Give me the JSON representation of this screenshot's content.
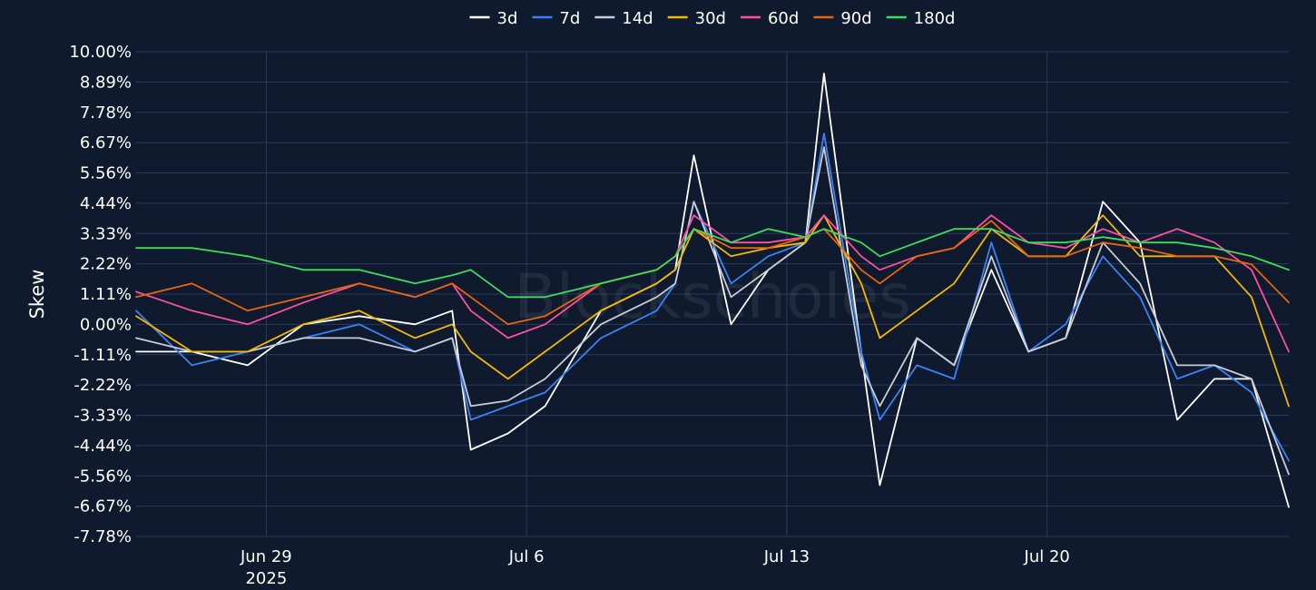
{
  "chart_data": {
    "type": "line",
    "ylabel": "Skew",
    "watermark": "Blockscholes",
    "ylim": [
      -7.78,
      10.0
    ],
    "y_ticks": [
      "10.00%",
      "8.89%",
      "7.78%",
      "6.67%",
      "5.56%",
      "4.44%",
      "3.33%",
      "2.22%",
      "1.11%",
      "0.00%",
      "-1.11%",
      "-2.22%",
      "-3.33%",
      "-4.44%",
      "-5.56%",
      "-6.67%",
      "-7.78%"
    ],
    "x_ticks": [
      {
        "label": "Jun 29",
        "sublabel": "2025",
        "date": "2025-06-29"
      },
      {
        "label": "Jul 6",
        "sublabel": "",
        "date": "2025-07-06"
      },
      {
        "label": "Jul 13",
        "sublabel": "",
        "date": "2025-07-13"
      },
      {
        "label": "Jul 20",
        "sublabel": "",
        "date": "2025-07-20"
      }
    ],
    "x_range": [
      "2025-06-25T12:00",
      "2025-07-26T12:00"
    ],
    "grid": true,
    "legend_placement": "top-center",
    "series": [
      {
        "name": "3d",
        "color": "#ffffff",
        "x": [
          "2025-06-25T12:00",
          "2025-06-27T00:00",
          "2025-06-28T12:00",
          "2025-06-30T00:00",
          "2025-07-01T12:00",
          "2025-07-03T00:00",
          "2025-07-04T00:00",
          "2025-07-04T12:00",
          "2025-07-05T12:00",
          "2025-07-06T12:00",
          "2025-07-08T00:00",
          "2025-07-09T12:00",
          "2025-07-10T00:00",
          "2025-07-10T12:00",
          "2025-07-11T12:00",
          "2025-07-12T12:00",
          "2025-07-13T12:00",
          "2025-07-14T00:00",
          "2025-07-15T00:00",
          "2025-07-15T12:00",
          "2025-07-16T12:00",
          "2025-07-17T12:00",
          "2025-07-18T12:00",
          "2025-07-19T12:00",
          "2025-07-20T12:00",
          "2025-07-21T12:00",
          "2025-07-22T12:00",
          "2025-07-23T12:00",
          "2025-07-24T12:00",
          "2025-07-25T12:00",
          "2025-07-26T12:00"
        ],
        "y": [
          -1.0,
          -1.0,
          -1.5,
          0.0,
          0.3,
          0.0,
          0.5,
          -4.6,
          -4.0,
          -3.0,
          0.5,
          1.5,
          2.0,
          6.2,
          0.0,
          2.0,
          3.0,
          9.2,
          -1.0,
          -5.9,
          -0.5,
          -1.5,
          2.0,
          -1.0,
          -0.5,
          4.5,
          3.0,
          -3.5,
          -2.0,
          -2.0,
          -6.7
        ]
      },
      {
        "name": "7d",
        "color": "#3b82f6",
        "x": [
          "2025-06-25T12:00",
          "2025-06-27T00:00",
          "2025-06-28T12:00",
          "2025-06-30T00:00",
          "2025-07-01T12:00",
          "2025-07-03T00:00",
          "2025-07-04T00:00",
          "2025-07-04T12:00",
          "2025-07-05T12:00",
          "2025-07-06T12:00",
          "2025-07-08T00:00",
          "2025-07-09T12:00",
          "2025-07-10T00:00",
          "2025-07-10T12:00",
          "2025-07-11T12:00",
          "2025-07-12T12:00",
          "2025-07-13T12:00",
          "2025-07-14T00:00",
          "2025-07-15T00:00",
          "2025-07-15T12:00",
          "2025-07-16T12:00",
          "2025-07-17T12:00",
          "2025-07-18T12:00",
          "2025-07-19T12:00",
          "2025-07-20T12:00",
          "2025-07-21T12:00",
          "2025-07-22T12:00",
          "2025-07-23T12:00",
          "2025-07-24T12:00",
          "2025-07-25T12:00",
          "2025-07-26T12:00"
        ],
        "y": [
          0.5,
          -1.5,
          -1.0,
          -0.5,
          0.0,
          -1.0,
          -0.5,
          -3.5,
          -3.0,
          -2.5,
          -0.5,
          0.5,
          1.5,
          4.5,
          1.5,
          2.5,
          3.0,
          7.0,
          -1.0,
          -3.5,
          -1.5,
          -2.0,
          3.0,
          -1.0,
          0.0,
          2.5,
          1.0,
          -2.0,
          -1.5,
          -2.5,
          -5.0
        ]
      },
      {
        "name": "14d",
        "color": "#c8ccd4",
        "x": [
          "2025-06-25T12:00",
          "2025-06-27T00:00",
          "2025-06-28T12:00",
          "2025-06-30T00:00",
          "2025-07-01T12:00",
          "2025-07-03T00:00",
          "2025-07-04T00:00",
          "2025-07-04T12:00",
          "2025-07-05T12:00",
          "2025-07-06T12:00",
          "2025-07-08T00:00",
          "2025-07-09T12:00",
          "2025-07-10T00:00",
          "2025-07-10T12:00",
          "2025-07-11T12:00",
          "2025-07-12T12:00",
          "2025-07-13T12:00",
          "2025-07-14T00:00",
          "2025-07-15T00:00",
          "2025-07-15T12:00",
          "2025-07-16T12:00",
          "2025-07-17T12:00",
          "2025-07-18T12:00",
          "2025-07-19T12:00",
          "2025-07-20T12:00",
          "2025-07-21T12:00",
          "2025-07-22T12:00",
          "2025-07-23T12:00",
          "2025-07-24T12:00",
          "2025-07-25T12:00",
          "2025-07-26T12:00"
        ],
        "y": [
          -0.5,
          -1.0,
          -1.0,
          -0.5,
          -0.5,
          -1.0,
          -0.5,
          -3.0,
          -2.8,
          -2.0,
          0.0,
          1.0,
          1.5,
          4.5,
          1.0,
          2.0,
          3.0,
          6.5,
          -1.5,
          -3.0,
          -0.5,
          -1.5,
          2.5,
          -1.0,
          -0.5,
          3.0,
          1.5,
          -1.5,
          -1.5,
          -2.0,
          -5.5
        ]
      },
      {
        "name": "30d",
        "color": "#f5b800",
        "x": [
          "2025-06-25T12:00",
          "2025-06-27T00:00",
          "2025-06-28T12:00",
          "2025-06-30T00:00",
          "2025-07-01T12:00",
          "2025-07-03T00:00",
          "2025-07-04T00:00",
          "2025-07-04T12:00",
          "2025-07-05T12:00",
          "2025-07-06T12:00",
          "2025-07-08T00:00",
          "2025-07-09T12:00",
          "2025-07-10T00:00",
          "2025-07-10T12:00",
          "2025-07-11T12:00",
          "2025-07-12T12:00",
          "2025-07-13T12:00",
          "2025-07-14T00:00",
          "2025-07-15T00:00",
          "2025-07-15T12:00",
          "2025-07-16T12:00",
          "2025-07-17T12:00",
          "2025-07-18T12:00",
          "2025-07-19T12:00",
          "2025-07-20T12:00",
          "2025-07-21T12:00",
          "2025-07-22T12:00",
          "2025-07-23T12:00",
          "2025-07-24T12:00",
          "2025-07-25T12:00",
          "2025-07-26T12:00"
        ],
        "y": [
          0.3,
          -1.0,
          -1.0,
          0.0,
          0.5,
          -0.5,
          0.0,
          -1.0,
          -2.0,
          -1.0,
          0.5,
          1.5,
          2.0,
          3.5,
          2.5,
          2.8,
          3.0,
          4.0,
          1.5,
          -0.5,
          0.5,
          1.5,
          3.5,
          2.5,
          2.5,
          4.0,
          2.5,
          2.5,
          2.5,
          1.0,
          -3.0
        ]
      },
      {
        "name": "60d",
        "color": "#ff4fa3",
        "x": [
          "2025-06-25T12:00",
          "2025-06-27T00:00",
          "2025-06-28T12:00",
          "2025-06-30T00:00",
          "2025-07-01T12:00",
          "2025-07-03T00:00",
          "2025-07-04T00:00",
          "2025-07-04T12:00",
          "2025-07-05T12:00",
          "2025-07-06T12:00",
          "2025-07-08T00:00",
          "2025-07-09T12:00",
          "2025-07-10T00:00",
          "2025-07-10T12:00",
          "2025-07-11T12:00",
          "2025-07-12T12:00",
          "2025-07-13T12:00",
          "2025-07-14T00:00",
          "2025-07-15T00:00",
          "2025-07-15T12:00",
          "2025-07-16T12:00",
          "2025-07-17T12:00",
          "2025-07-18T12:00",
          "2025-07-19T12:00",
          "2025-07-20T12:00",
          "2025-07-21T12:00",
          "2025-07-22T12:00",
          "2025-07-23T12:00",
          "2025-07-24T12:00",
          "2025-07-25T12:00",
          "2025-07-26T12:00"
        ],
        "y": [
          1.2,
          0.5,
          0.0,
          0.8,
          1.5,
          1.0,
          1.5,
          0.5,
          -0.5,
          0.0,
          1.5,
          2.0,
          2.5,
          4.0,
          3.0,
          3.0,
          3.2,
          4.0,
          2.5,
          2.0,
          2.5,
          2.8,
          4.0,
          3.0,
          2.8,
          3.5,
          3.0,
          3.5,
          3.0,
          2.0,
          -1.0
        ]
      },
      {
        "name": "90d",
        "color": "#e8650f",
        "x": [
          "2025-06-25T12:00",
          "2025-06-27T00:00",
          "2025-06-28T12:00",
          "2025-06-30T00:00",
          "2025-07-01T12:00",
          "2025-07-03T00:00",
          "2025-07-04T00:00",
          "2025-07-04T12:00",
          "2025-07-05T12:00",
          "2025-07-06T12:00",
          "2025-07-08T00:00",
          "2025-07-09T12:00",
          "2025-07-10T00:00",
          "2025-07-10T12:00",
          "2025-07-11T12:00",
          "2025-07-12T12:00",
          "2025-07-13T12:00",
          "2025-07-14T00:00",
          "2025-07-15T00:00",
          "2025-07-15T12:00",
          "2025-07-16T12:00",
          "2025-07-17T12:00",
          "2025-07-18T12:00",
          "2025-07-19T12:00",
          "2025-07-20T12:00",
          "2025-07-21T12:00",
          "2025-07-22T12:00",
          "2025-07-23T12:00",
          "2025-07-24T12:00",
          "2025-07-25T12:00",
          "2025-07-26T12:00"
        ],
        "y": [
          1.0,
          1.5,
          0.5,
          1.0,
          1.5,
          1.0,
          1.5,
          1.0,
          0.0,
          0.3,
          1.5,
          2.0,
          2.5,
          3.5,
          2.8,
          2.8,
          3.2,
          3.5,
          2.0,
          1.5,
          2.5,
          2.8,
          3.8,
          2.5,
          2.5,
          3.0,
          2.8,
          2.5,
          2.5,
          2.2,
          0.8
        ]
      },
      {
        "name": "180d",
        "color": "#3ddc5a",
        "x": [
          "2025-06-25T12:00",
          "2025-06-27T00:00",
          "2025-06-28T12:00",
          "2025-06-30T00:00",
          "2025-07-01T12:00",
          "2025-07-03T00:00",
          "2025-07-04T00:00",
          "2025-07-04T12:00",
          "2025-07-05T12:00",
          "2025-07-06T12:00",
          "2025-07-08T00:00",
          "2025-07-09T12:00",
          "2025-07-10T00:00",
          "2025-07-10T12:00",
          "2025-07-11T12:00",
          "2025-07-12T12:00",
          "2025-07-13T12:00",
          "2025-07-14T00:00",
          "2025-07-15T00:00",
          "2025-07-15T12:00",
          "2025-07-16T12:00",
          "2025-07-17T12:00",
          "2025-07-18T12:00",
          "2025-07-19T12:00",
          "2025-07-20T12:00",
          "2025-07-21T12:00",
          "2025-07-22T12:00",
          "2025-07-23T12:00",
          "2025-07-24T12:00",
          "2025-07-25T12:00",
          "2025-07-26T12:00"
        ],
        "y": [
          2.8,
          2.8,
          2.5,
          2.0,
          2.0,
          1.5,
          1.8,
          2.0,
          1.0,
          1.0,
          1.5,
          2.0,
          2.5,
          3.5,
          3.0,
          3.5,
          3.2,
          3.5,
          3.0,
          2.5,
          3.0,
          3.5,
          3.5,
          3.0,
          3.0,
          3.2,
          3.0,
          3.0,
          2.8,
          2.5,
          2.0
        ]
      }
    ]
  }
}
